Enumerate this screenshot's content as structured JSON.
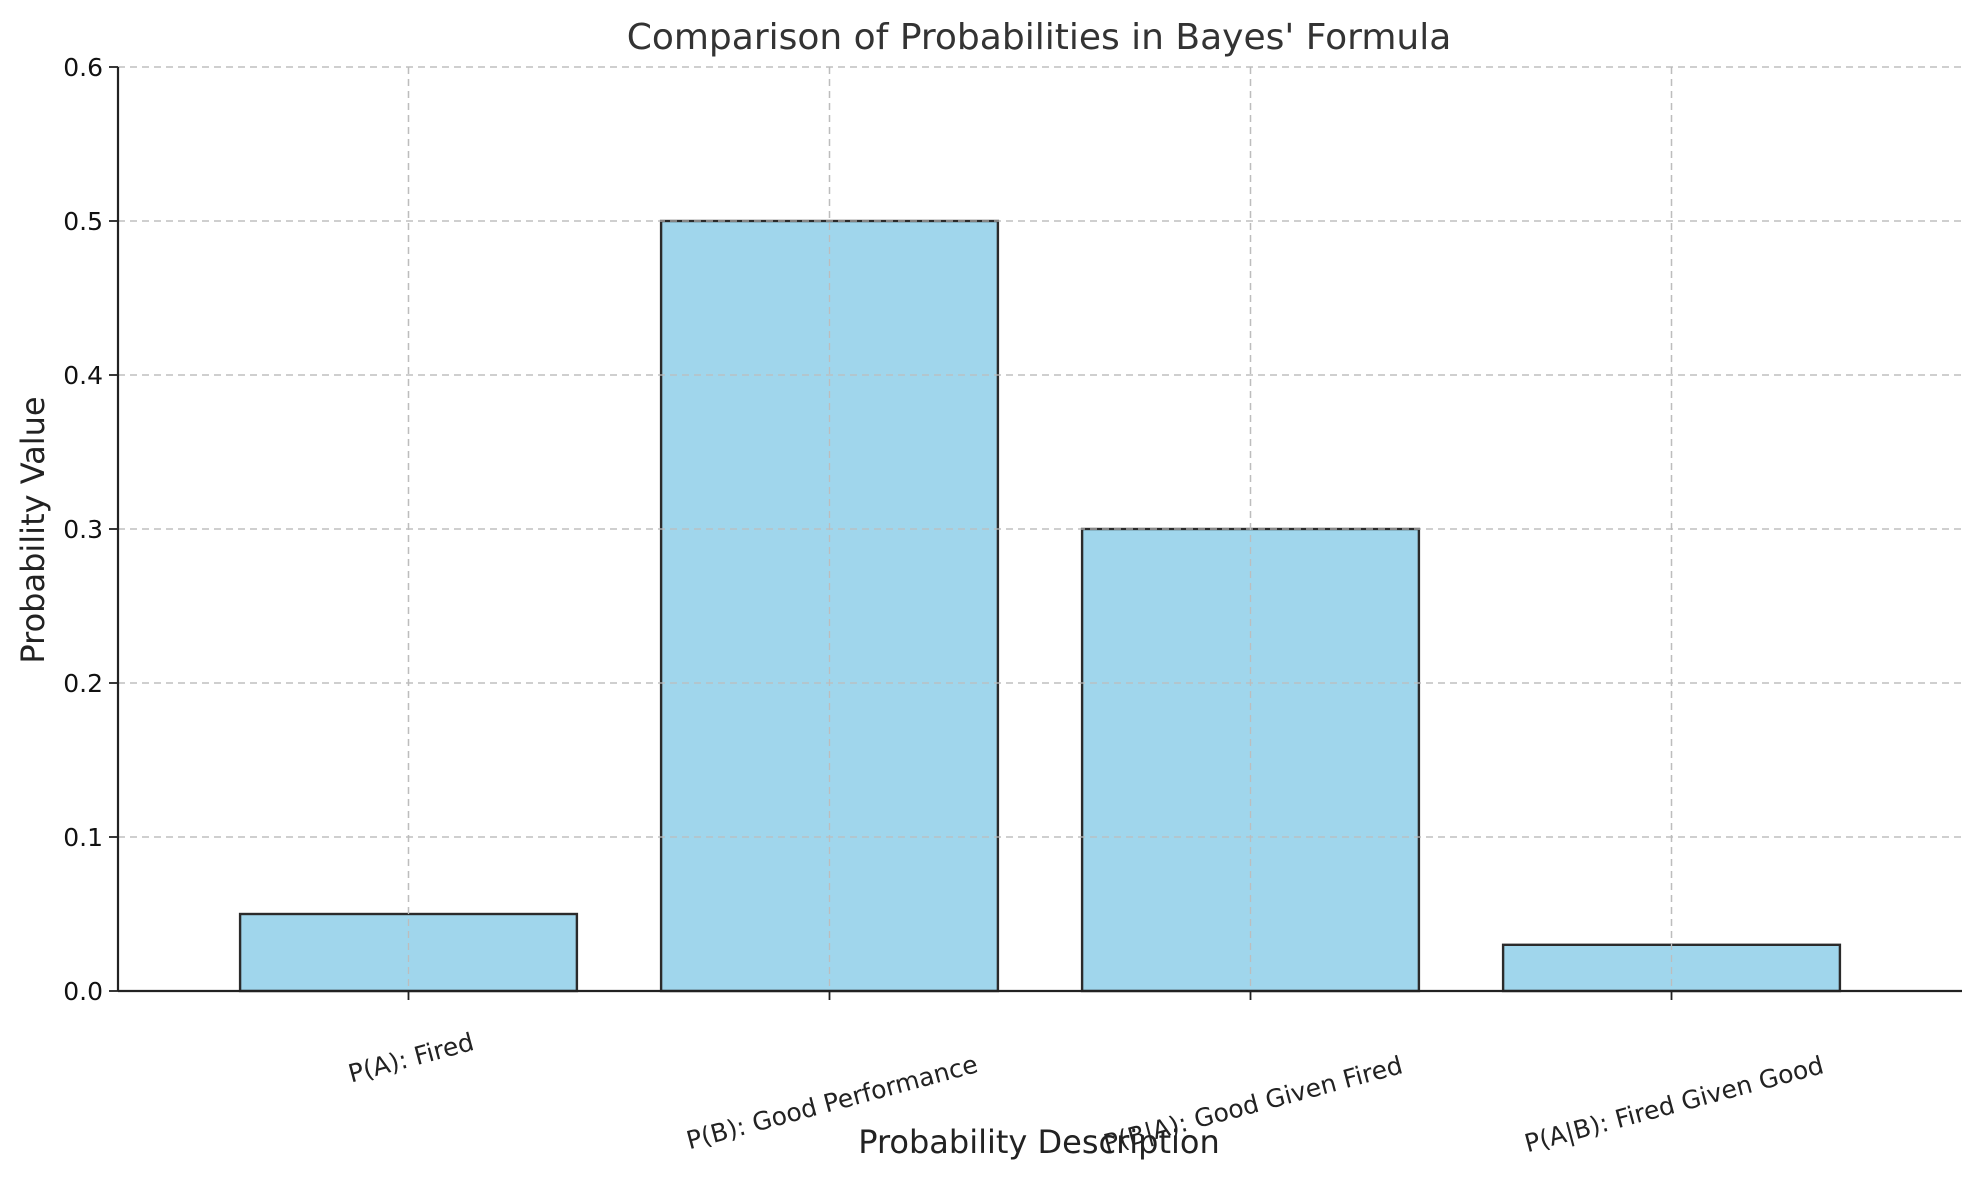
{
  "chart_data": {
    "type": "bar",
    "title": "Comparison of Probabilities in Bayes' Formula",
    "xlabel": "Probability Description",
    "ylabel": "Probability Value",
    "categories": [
      "P(A): Fired",
      "P(B): Good Performance",
      "P(B|A): Good Given Fired",
      "P(A|B): Fired Given Good"
    ],
    "values": [
      0.05,
      0.5,
      0.3,
      0.03
    ],
    "ylim": [
      0,
      0.6
    ],
    "yticks": [
      "0.0",
      "0.1",
      "0.2",
      "0.3",
      "0.4",
      "0.5",
      "0.6"
    ],
    "grid": true,
    "bar_color": "#a0d6ec",
    "edge_color": "#2b2b2b"
  }
}
